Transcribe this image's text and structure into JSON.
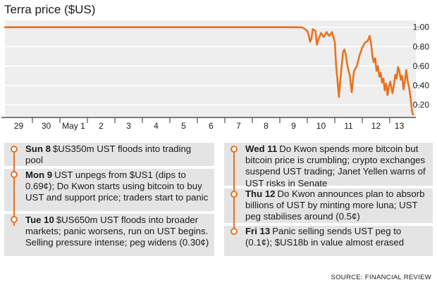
{
  "chart_data": {
    "type": "line",
    "title": "Terra price ($US)",
    "y_ticks": [
      "1.00",
      "0.80",
      "0.60",
      "0.40",
      "0.20"
    ],
    "ylim": [
      0.07,
      1.07
    ],
    "x_tick_labels": [
      "29",
      "30",
      "May 1",
      "2",
      "3",
      "4",
      "5",
      "6",
      "7",
      "8",
      "9",
      "10",
      "11",
      "12",
      "13"
    ],
    "x_tick_positions": [
      0.5,
      1.5,
      2.5,
      3.5,
      4.5,
      5.5,
      6.5,
      7.5,
      8.5,
      9.5,
      10.5,
      11.5,
      12.5,
      13.5,
      14.35
    ],
    "xlim": [
      0,
      14.95
    ],
    "grid": true,
    "series": [
      {
        "color": "#e8731e",
        "points": [
          [
            0.0,
            1.0
          ],
          [
            2.0,
            1.0
          ],
          [
            4.0,
            1.0
          ],
          [
            6.0,
            1.0
          ],
          [
            8.0,
            1.0
          ],
          [
            10.0,
            1.0
          ],
          [
            10.5,
            1.0
          ],
          [
            10.8,
            0.998
          ],
          [
            10.9,
            0.985
          ],
          [
            11.0,
            0.96
          ],
          [
            11.05,
            0.92
          ],
          [
            11.1,
            0.85
          ],
          [
            11.15,
            0.88
          ],
          [
            11.2,
            0.98
          ],
          [
            11.3,
            0.96
          ],
          [
            11.35,
            0.82
          ],
          [
            11.4,
            0.87
          ],
          [
            11.5,
            0.94
          ],
          [
            11.6,
            0.9
          ],
          [
            11.7,
            0.95
          ],
          [
            11.8,
            0.91
          ],
          [
            11.9,
            0.95
          ],
          [
            12.0,
            0.85
          ],
          [
            12.05,
            0.6
          ],
          [
            12.1,
            0.45
          ],
          [
            12.15,
            0.28
          ],
          [
            12.18,
            0.38
          ],
          [
            12.25,
            0.6
          ],
          [
            12.3,
            0.74
          ],
          [
            12.35,
            0.77
          ],
          [
            12.4,
            0.72
          ],
          [
            12.45,
            0.62
          ],
          [
            12.5,
            0.55
          ],
          [
            12.55,
            0.5
          ],
          [
            12.58,
            0.41
          ],
          [
            12.62,
            0.33
          ],
          [
            12.66,
            0.45
          ],
          [
            12.7,
            0.55
          ],
          [
            12.8,
            0.6
          ],
          [
            12.9,
            0.71
          ],
          [
            13.0,
            0.79
          ],
          [
            13.1,
            0.84
          ],
          [
            13.2,
            0.86
          ],
          [
            13.27,
            0.91
          ],
          [
            13.32,
            0.84
          ],
          [
            13.37,
            0.7
          ],
          [
            13.42,
            0.64
          ],
          [
            13.47,
            0.68
          ],
          [
            13.52,
            0.55
          ],
          [
            13.57,
            0.6
          ],
          [
            13.62,
            0.49
          ],
          [
            13.67,
            0.53
          ],
          [
            13.72,
            0.43
          ],
          [
            13.77,
            0.47
          ],
          [
            13.82,
            0.35
          ],
          [
            13.87,
            0.42
          ],
          [
            13.92,
            0.3
          ],
          [
            13.97,
            0.39
          ],
          [
            14.02,
            0.44
          ],
          [
            14.07,
            0.36
          ],
          [
            14.1,
            0.32
          ],
          [
            14.15,
            0.4
          ],
          [
            14.2,
            0.51
          ],
          [
            14.25,
            0.47
          ],
          [
            14.3,
            0.59
          ],
          [
            14.35,
            0.55
          ],
          [
            14.4,
            0.46
          ],
          [
            14.45,
            0.5
          ],
          [
            14.5,
            0.36
          ],
          [
            14.55,
            0.44
          ],
          [
            14.6,
            0.56
          ],
          [
            14.65,
            0.45
          ],
          [
            14.7,
            0.38
          ],
          [
            14.75,
            0.29
          ],
          [
            14.79,
            0.18
          ],
          [
            14.82,
            0.12
          ],
          [
            14.85,
            0.1
          ]
        ]
      }
    ]
  },
  "events": {
    "left": [
      {
        "day": "Sun 8",
        "text": "$US350m UST floods into trading pool"
      },
      {
        "day": "Mon 9",
        "text": "UST unpegs from $US1 (dips to 0.69¢); Do Kwon starts using bitcoin to buy UST and support price; traders start to panic"
      },
      {
        "day": "Tue 10",
        "text": "$US650m UST floods into broader markets; panic worsens, run on UST begins. Selling pressure intense; peg widens (0.30¢)"
      }
    ],
    "right": [
      {
        "day": "Wed 11",
        "text": "Do Kwon spends more bitcoin but bitcoin price is crumbling; crypto exchanges suspend UST trading; Janet Yellen warns of UST risks in Senate"
      },
      {
        "day": "Thu 12",
        "text": "Do Kwon announces plan to absorb billions of UST by minting more luna; UST peg stabilises around (0.5¢)"
      },
      {
        "day": "Fri 13",
        "text": "Panic selling sends UST peg to (0.1¢); $US18b in value almost erased"
      }
    ]
  },
  "source": "SOURCE: FINANCIAL REVIEW",
  "colors": {
    "accent": "#e8731e",
    "panel": "#e4e4e4",
    "plot_bg": "#eeeeee"
  }
}
